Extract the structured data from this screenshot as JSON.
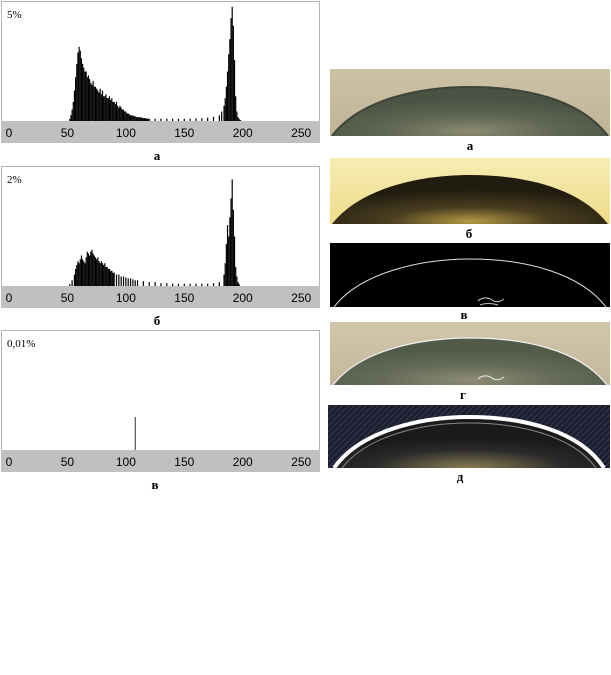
{
  "chart_data": [
    {
      "type": "bar",
      "ylabel": "5%",
      "xlim": [
        0,
        255
      ],
      "xticks": [
        "0",
        "50",
        "100",
        "150",
        "200",
        "250"
      ],
      "caption": "а",
      "x": [
        52,
        53,
        54,
        55,
        56,
        57,
        58,
        59,
        60,
        61,
        62,
        63,
        64,
        65,
        66,
        67,
        68,
        69,
        70,
        71,
        72,
        73,
        74,
        75,
        76,
        77,
        78,
        79,
        80,
        81,
        82,
        83,
        84,
        85,
        86,
        87,
        88,
        89,
        90,
        91,
        92,
        93,
        94,
        95,
        96,
        97,
        98,
        99,
        100,
        101,
        102,
        103,
        104,
        105,
        106,
        107,
        108,
        109,
        110,
        111,
        112,
        113,
        114,
        115,
        116,
        117,
        118,
        119,
        120,
        125,
        130,
        135,
        140,
        145,
        150,
        155,
        160,
        165,
        170,
        175,
        180,
        182,
        184,
        185,
        186,
        187,
        188,
        189,
        190,
        191,
        192,
        193,
        194,
        195,
        196,
        197,
        198
      ],
      "values": [
        0.1,
        0.3,
        0.6,
        1.0,
        1.6,
        2.3,
        3.0,
        3.6,
        3.9,
        3.7,
        3.3,
        3.0,
        2.8,
        2.6,
        2.6,
        2.3,
        2.4,
        2.2,
        2.0,
        1.9,
        2.1,
        1.8,
        1.8,
        1.7,
        1.6,
        1.5,
        1.7,
        1.4,
        1.6,
        1.3,
        1.3,
        1.4,
        1.2,
        1.2,
        1.3,
        1.1,
        1.2,
        1.0,
        1.0,
        0.9,
        1.0,
        0.8,
        0.7,
        0.8,
        0.7,
        0.6,
        0.6,
        0.5,
        0.5,
        0.4,
        0.4,
        0.35,
        0.3,
        0.3,
        0.3,
        0.25,
        0.25,
        0.2,
        0.2,
        0.2,
        0.2,
        0.18,
        0.18,
        0.15,
        0.15,
        0.15,
        0.12,
        0.12,
        0.12,
        0.12,
        0.12,
        0.12,
        0.12,
        0.12,
        0.12,
        0.12,
        0.14,
        0.15,
        0.18,
        0.22,
        0.3,
        0.5,
        0.8,
        1.2,
        1.8,
        2.6,
        3.5,
        4.3,
        5.4,
        6.0,
        5.0,
        3.2,
        1.3,
        0.5,
        0.2,
        0.1,
        0.05
      ]
    },
    {
      "type": "bar",
      "ylabel": "2%",
      "xlim": [
        0,
        255
      ],
      "xticks": [
        "0",
        "50",
        "100",
        "150",
        "200",
        "250"
      ],
      "caption": "б",
      "x": [
        52,
        54,
        56,
        57,
        58,
        59,
        60,
        61,
        62,
        63,
        64,
        65,
        66,
        67,
        68,
        69,
        70,
        71,
        72,
        73,
        74,
        75,
        76,
        77,
        78,
        79,
        80,
        81,
        82,
        83,
        84,
        85,
        86,
        87,
        88,
        89,
        90,
        92,
        94,
        96,
        98,
        100,
        102,
        104,
        106,
        108,
        110,
        115,
        120,
        125,
        130,
        135,
        140,
        145,
        150,
        155,
        160,
        165,
        170,
        175,
        180,
        184,
        185,
        186,
        187,
        188,
        189,
        190,
        191,
        192,
        193,
        194,
        195,
        196,
        197
      ],
      "values": [
        0.1,
        0.3,
        0.6,
        0.9,
        1.1,
        1.3,
        1.2,
        1.4,
        1.6,
        1.4,
        1.3,
        1.2,
        1.5,
        1.8,
        1.7,
        1.6,
        1.8,
        1.9,
        1.7,
        1.6,
        1.5,
        1.4,
        1.5,
        1.3,
        1.2,
        1.3,
        1.2,
        1.1,
        1.2,
        1.0,
        1.0,
        0.9,
        0.9,
        0.8,
        0.8,
        0.7,
        0.7,
        0.6,
        0.6,
        0.5,
        0.5,
        0.45,
        0.4,
        0.4,
        0.35,
        0.3,
        0.3,
        0.25,
        0.2,
        0.2,
        0.15,
        0.15,
        0.12,
        0.12,
        0.12,
        0.12,
        0.12,
        0.12,
        0.12,
        0.15,
        0.2,
        0.6,
        1.2,
        2.2,
        3.2,
        2.6,
        3.6,
        4.6,
        5.6,
        4.0,
        2.6,
        1.0,
        0.5,
        0.2,
        0.1
      ]
    },
    {
      "type": "bar",
      "ylabel": "0,01%",
      "xlim": [
        0,
        255
      ],
      "xticks": [
        "0",
        "50",
        "100",
        "150",
        "200",
        "250"
      ],
      "caption": "в",
      "x": [
        108
      ],
      "values": [
        0.0057
      ]
    }
  ],
  "photos": [
    {
      "caption": "а",
      "style": "original"
    },
    {
      "caption": "б",
      "style": "enhanced"
    },
    {
      "caption": "в",
      "style": "edges"
    },
    {
      "caption": "г",
      "style": "overlay"
    },
    {
      "caption": "д",
      "style": "gradient"
    }
  ],
  "colors": {
    "axis_band": "#c0c0c0",
    "bar": "#000000",
    "plot_bg": "#ffffff",
    "frame": "#b4b4b4"
  }
}
